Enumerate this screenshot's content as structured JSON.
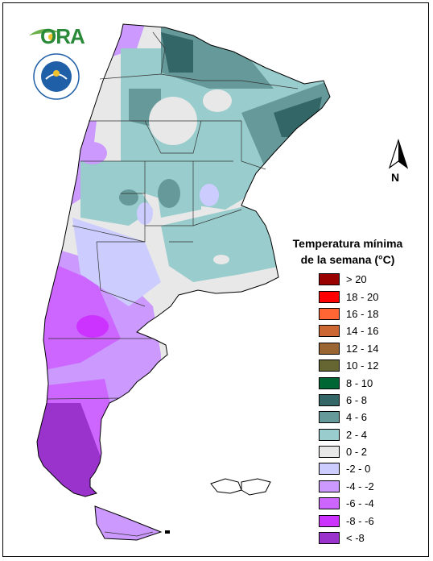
{
  "logos": {
    "ora_text": "ORA",
    "smn_text": "SERVICIO METEOROLOGICO NACIONAL · ARGENTINA"
  },
  "north_arrow": {
    "label": "N"
  },
  "legend": {
    "title_line1": "Temperatura mínima",
    "title_line2": "de la semana (°C)",
    "items": [
      {
        "label": "> 20",
        "color": "#990000"
      },
      {
        "label": "18 - 20",
        "color": "#ff0000"
      },
      {
        "label": "16 - 18",
        "color": "#ff6633"
      },
      {
        "label": "14 - 16",
        "color": "#cc6633"
      },
      {
        "label": "12 - 14",
        "color": "#996633"
      },
      {
        "label": "10 - 12",
        "color": "#666633"
      },
      {
        "label": "8 - 10",
        "color": "#006633"
      },
      {
        "label": "6 - 8",
        "color": "#336666"
      },
      {
        "label": "4 - 6",
        "color": "#669999"
      },
      {
        "label": "2 - 4",
        "color": "#99cccc"
      },
      {
        "label": "0 - 2",
        "color": "#e8e8e8"
      },
      {
        "label": "-2 - 0",
        "color": "#ccccff"
      },
      {
        "label": "-4 - -2",
        "color": "#cc99ff"
      },
      {
        "label": "-6 - -4",
        "color": "#cc66ff"
      },
      {
        "label": "-8 - -6",
        "color": "#cc33ff"
      },
      {
        "label": "< -8",
        "color": "#9933cc"
      }
    ]
  }
}
